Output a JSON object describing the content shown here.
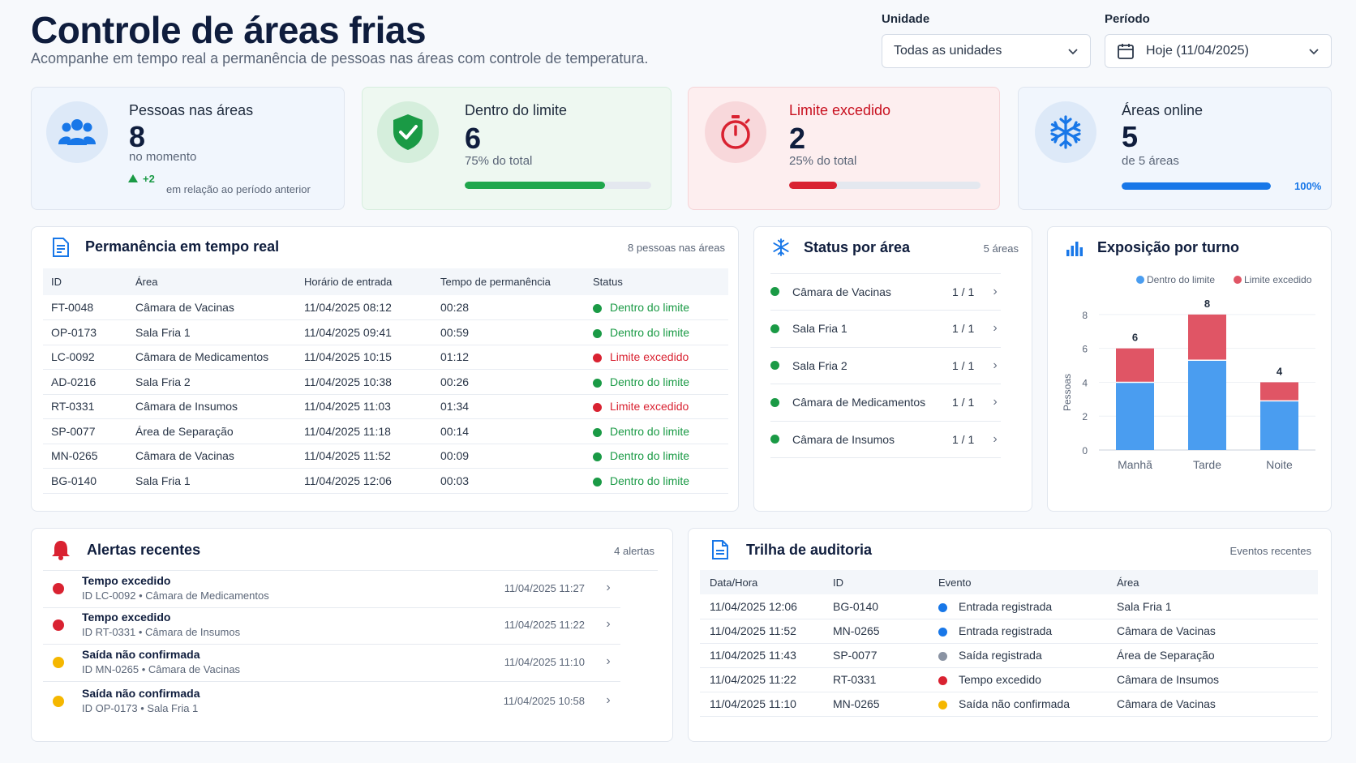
{
  "header": {
    "title": "Controle de áreas frias",
    "subtitle": "Acompanhe em tempo real a permanência de pessoas nas áreas com controle de temperatura."
  },
  "filters": {
    "unit_label": "Unidade",
    "unit_value": "Todas as unidades",
    "period_label": "Período",
    "period_value": "Hoje (11/04/2025)"
  },
  "kpis": {
    "people": {
      "title": "Pessoas nas áreas",
      "value": "8",
      "note": "no momento",
      "delta": "+2",
      "delta_note": "em relação ao período anterior"
    },
    "within": {
      "title": "Dentro do limite",
      "value": "6",
      "note": "75% do total",
      "progress": 0.75
    },
    "exceeded": {
      "title": "Limite excedido",
      "value": "2",
      "note": "25% do total",
      "progress": 0.25
    },
    "online": {
      "title": "Áreas online",
      "value": "5",
      "note": "de 5 áreas",
      "progress": 1.0,
      "percent": "100%"
    }
  },
  "colors": {
    "ok": "#1a9a45",
    "bad": "#d92231",
    "warn": "#f5b700",
    "blue": "#1877e8",
    "gray": "#8a93a3"
  },
  "permanencia": {
    "title": "Permanência em tempo real",
    "meta": "8 pessoas nas áreas",
    "columns": [
      "ID",
      "Área",
      "Horário de entrada",
      "Tempo de permanência",
      "Status"
    ],
    "rows": [
      {
        "id": "FT-0048",
        "area": "Câmara de Vacinas",
        "entrada": "11/04/2025 08:12",
        "tempo": "00:28",
        "status": "Dentro do limite",
        "ok": true
      },
      {
        "id": "OP-0173",
        "area": "Sala Fria 1",
        "entrada": "11/04/2025 09:41",
        "tempo": "00:59",
        "status": "Dentro do limite",
        "ok": true
      },
      {
        "id": "LC-0092",
        "area": "Câmara de Medicamentos",
        "entrada": "11/04/2025 10:15",
        "tempo": "01:12",
        "status": "Limite excedido",
        "ok": false
      },
      {
        "id": "AD-0216",
        "area": "Sala Fria 2",
        "entrada": "11/04/2025 10:38",
        "tempo": "00:26",
        "status": "Dentro do limite",
        "ok": true
      },
      {
        "id": "RT-0331",
        "area": "Câmara de Insumos",
        "entrada": "11/04/2025 11:03",
        "tempo": "01:34",
        "status": "Limite excedido",
        "ok": false
      },
      {
        "id": "SP-0077",
        "area": "Área de Separação",
        "entrada": "11/04/2025 11:18",
        "tempo": "00:14",
        "status": "Dentro do limite",
        "ok": true
      },
      {
        "id": "MN-0265",
        "area": "Câmara de Vacinas",
        "entrada": "11/04/2025 11:52",
        "tempo": "00:09",
        "status": "Dentro do limite",
        "ok": true
      },
      {
        "id": "BG-0140",
        "area": "Sala Fria 1",
        "entrada": "11/04/2025 12:06",
        "tempo": "00:03",
        "status": "Dentro do limite",
        "ok": true
      }
    ]
  },
  "status_area": {
    "title": "Status por área",
    "meta": "5 áreas",
    "items": [
      {
        "name": "Câmara de Vacinas",
        "count": "1 / 1"
      },
      {
        "name": "Sala Fria 1",
        "count": "1 / 1"
      },
      {
        "name": "Sala Fria 2",
        "count": "1 / 1"
      },
      {
        "name": "Câmara de Medicamentos",
        "count": "1 / 1"
      },
      {
        "name": "Câmara de Insumos",
        "count": "1 / 1"
      }
    ]
  },
  "chart_data": {
    "type": "bar",
    "title": "Exposição por turno",
    "categories": [
      "Manhã",
      "Tarde",
      "Noite"
    ],
    "series": [
      {
        "name": "Dentro do limite",
        "values": [
          4,
          5.3,
          2.9
        ],
        "color": "#4a9df0"
      },
      {
        "name": "Limite excedido",
        "values": [
          2,
          2.7,
          1.1
        ],
        "color": "#e05565"
      }
    ],
    "totals": [
      "6",
      "8",
      "4"
    ],
    "ylabel": "Pessoas",
    "yticks": [
      "0",
      "2",
      "4",
      "6",
      "8"
    ],
    "ylim": [
      0,
      9
    ],
    "stacked": true,
    "legend": "top-right"
  },
  "alerts": {
    "title": "Alertas recentes",
    "meta": "4 alertas",
    "items": [
      {
        "title": "Tempo excedido",
        "sub": "ID LC-0092 • Câmara de Medicamentos",
        "time": "11/04/2025 11:27",
        "level": "bad"
      },
      {
        "title": "Tempo excedido",
        "sub": "ID RT-0331 • Câmara de Insumos",
        "time": "11/04/2025 11:22",
        "level": "bad"
      },
      {
        "title": "Saída não confirmada",
        "sub": "ID MN-0265  •  Câmara de Vacinas",
        "time": "11/04/2025 11:10",
        "level": "warn"
      },
      {
        "title": "Saída não confirmada",
        "sub": "ID OP-0173  •  Sala Fria 1",
        "time": "11/04/2025 10:58",
        "level": "warn"
      }
    ]
  },
  "audit": {
    "title": "Trilha de auditoria",
    "meta": "Eventos recentes",
    "columns": [
      "Data/Hora",
      "ID",
      "Evento",
      "Área"
    ],
    "rows": [
      {
        "data": "11/04/2025 12:06",
        "id": "BG-0140",
        "evento": "Entrada registrada",
        "area": "Sala Fria 1",
        "color": "blue"
      },
      {
        "data": "11/04/2025 11:52",
        "id": "MN-0265",
        "evento": "Entrada registrada",
        "area": "Câmara de Vacinas",
        "color": "blue"
      },
      {
        "data": "11/04/2025 11:43",
        "id": "SP-0077",
        "evento": "Saída registrada",
        "area": "Área de Separação",
        "color": "gray"
      },
      {
        "data": "11/04/2025 11:22",
        "id": "RT-0331",
        "evento": "Tempo excedido",
        "area": "Câmara de Insumos",
        "color": "bad"
      },
      {
        "data": "11/04/2025 11:10",
        "id": "MN-0265",
        "evento": "Saída não confirmada",
        "area": "Câmara de Vacinas",
        "color": "warn"
      }
    ]
  }
}
